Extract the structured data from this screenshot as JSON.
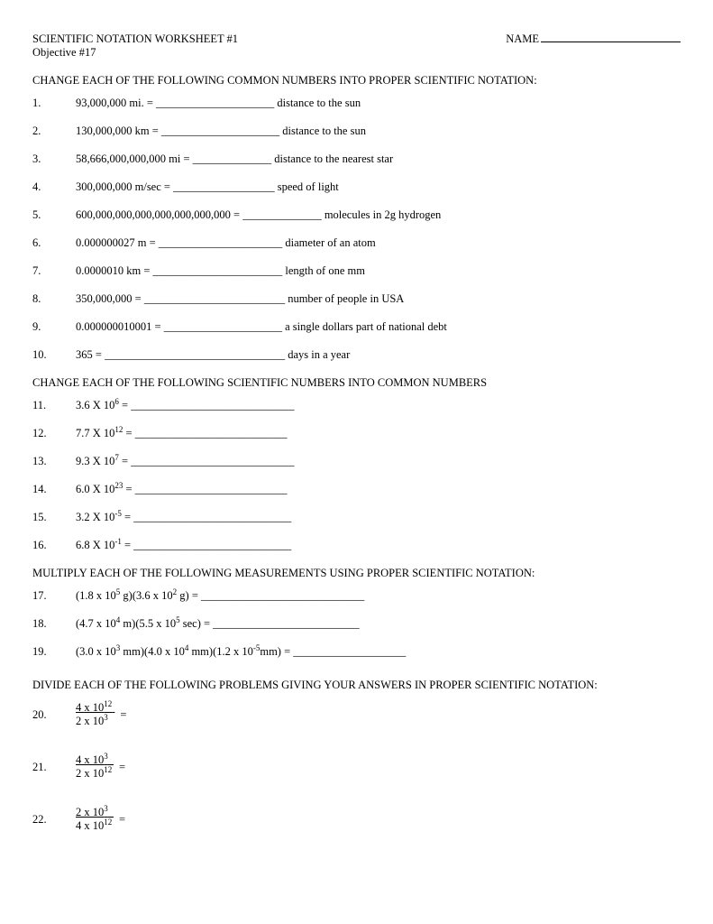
{
  "header": {
    "title": "SCIENTIFIC NOTATION WORKSHEET #1",
    "name_label": "NAME",
    "objective": "Objective #17"
  },
  "sections": {
    "s1": "CHANGE EACH OF THE FOLLOWING COMMON NUMBERS INTO PROPER SCIENTIFIC NOTATION:",
    "s2": "CHANGE EACH OF THE FOLLOWING SCIENTIFIC NUMBERS INTO COMMON NUMBERS",
    "s3": "MULTIPLY EACH OF THE FOLLOWING MEASUREMENTS USING PROPER SCIENTIFIC NOTATION:",
    "s4": "DIVIDE EACH OF THE FOLLOWING PROBLEMS GIVING YOUR ANSWERS IN PROPER SCIENTIFIC NOTATION:"
  },
  "q": {
    "1": {
      "n": "1.",
      "pre": "93,000,000 mi. = ",
      "blank": "_____________________",
      "post": " distance to the sun"
    },
    "2": {
      "n": "2.",
      "pre": "130,000,000 km = ",
      "blank": "_____________________",
      "post": " distance to the sun"
    },
    "3": {
      "n": "3.",
      "pre": "58,666,000,000,000 mi = ",
      "blank": "______________",
      "post": " distance to the nearest star"
    },
    "4": {
      "n": "4.",
      "pre": "300,000,000 m/sec = ",
      "blank": "__________________",
      "post": " speed of light"
    },
    "5": {
      "n": "5.",
      "pre": "600,000,000,000,000,000,000,000 = ",
      "blank": "______________",
      "post": " molecules in 2g hydrogen"
    },
    "6": {
      "n": "6.",
      "pre": "0.000000027 m = ",
      "blank": "______________________",
      "post": " diameter of an atom"
    },
    "7": {
      "n": "7.",
      "pre": "0.0000010 km = ",
      "blank": "_______________________",
      "post": " length of one mm"
    },
    "8": {
      "n": "8.",
      "pre": "350,000,000 = ",
      "blank": "_________________________",
      "post": " number of people in USA"
    },
    "9": {
      "n": "9.",
      "pre": "0.000000010001 = ",
      "blank": "_____________________",
      "post": " a single dollars part of national debt"
    },
    "10": {
      "n": "10.",
      "pre": "365 = ",
      "blank": "________________________________",
      "post": " days in a year"
    },
    "11": {
      "n": "11.",
      "coef": "3.6 X 10",
      "exp": "6",
      "tail": " = _____________________________"
    },
    "12": {
      "n": "12.",
      "coef": "7.7 X 10",
      "exp": "12",
      "tail": " = ___________________________"
    },
    "13": {
      "n": "13.",
      "coef": "9.3 X 10",
      "exp": "7",
      "tail": " = _____________________________"
    },
    "14": {
      "n": "14.",
      "coef": "6.0 X 10",
      "exp": "23",
      "tail": " = ___________________________"
    },
    "15": {
      "n": "15.",
      "coef": "3.2 X 10",
      "exp": "-5",
      "tail": " = ____________________________"
    },
    "16": {
      "n": "16.",
      "coef": "6.8 X 10",
      "exp": "-1",
      "tail": " = ____________________________"
    },
    "17": {
      "n": "17.",
      "a_c": "(1.8 x 10",
      "a_e": "5",
      "a_u": " g)",
      "b_c": "(3.6 x 10",
      "b_e": "2",
      "b_u": " g)",
      "tail": " = _____________________________"
    },
    "18": {
      "n": "18.",
      "a_c": "(4.7 x 10",
      "a_e": "4",
      "a_u": " m)",
      "b_c": "(5.5 x 10",
      "b_e": "5",
      "b_u": " sec)",
      "tail": " = __________________________"
    },
    "19": {
      "n": "19.",
      "a_c": "(3.0 x 10",
      "a_e": "3",
      "a_u": " mm)",
      "b_c": "(4.0 x 10",
      "b_e": "4",
      "b_u": " mm)",
      "c_c": "(1.2 x 10",
      "c_e": "-5",
      "c_u": "mm)",
      "tail": " = ____________________"
    },
    "20": {
      "n": "20.",
      "num_c": "4 x 10",
      "num_e": "12",
      "den_c": "2 x 10",
      "den_e": "3",
      "eq": "="
    },
    "21": {
      "n": "21.",
      "num_c": "4 x 10",
      "num_e": "3",
      "den_c": "2 x 10",
      "den_e": "12",
      "eq": "="
    },
    "22": {
      "n": "22.",
      "num_c": "2 x 10",
      "num_e": "3",
      "den_c": "4 x 10",
      "den_e": "12",
      "eq": "="
    }
  }
}
